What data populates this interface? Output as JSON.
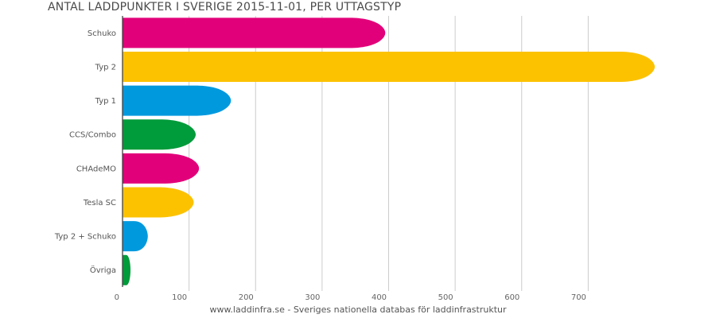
{
  "chart_data": {
    "type": "bar",
    "orientation": "horizontal",
    "title": "ANTAL LADDPUNKTER I SVERIGE 2015-11-01, PER UTTAGSTYP",
    "xlabel": "",
    "ylabel": "",
    "categories": [
      "Schuko",
      "Typ 2",
      "Typ 1",
      "CCS/Combo",
      "CHAdeMO",
      "Tesla SC",
      "Typ 2 + Schuko",
      "Övriga"
    ],
    "values": [
      395,
      800,
      163,
      110,
      115,
      107,
      38,
      12
    ],
    "colors": [
      "#e2007a",
      "#fcc200",
      "#0099de",
      "#009b3a",
      "#e2007a",
      "#fcc200",
      "#0099de",
      "#009b3a"
    ],
    "xlim": [
      0,
      800
    ],
    "xticks": [
      0,
      100,
      200,
      300,
      400,
      500,
      600,
      700
    ],
    "grid": true,
    "legend": "none"
  },
  "footer": {
    "credit": "www.laddinfra.se - Sveriges nationella databas för laddinfrastruktur"
  }
}
